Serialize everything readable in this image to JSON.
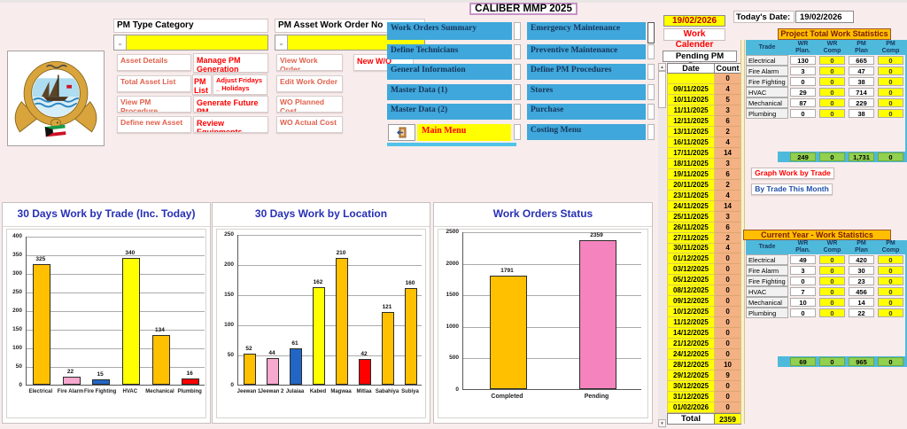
{
  "title": "CALIBER MMP 2025",
  "today": {
    "label": "Today's Date:",
    "value": "19/02/2026"
  },
  "icons": {
    "dropdown_arrow": "⌄",
    "scroll_up": "▲",
    "scroll_down": "▼"
  },
  "pm_category": {
    "label": "PM Type Category",
    "combo_value": "",
    "asset_details": "Asset Details",
    "manage_pm": "Manage PM Generation",
    "total_asset_list": "Total Asset List",
    "pm_list": "PM List",
    "adjust_fridays": "Adjust Fridays _ Holidays",
    "view_pm_procedure": "View PM Procedure",
    "generate_future_pm": "Generate Future PM",
    "define_new_asset": "Define new Asset",
    "review_equipments": "Review Equipments"
  },
  "pm_workorder": {
    "label": "PM Asset Work Order No",
    "combo_value": "",
    "view_work_order": "View Work Order",
    "new_wo": "New W/O",
    "edit_work_order": "Edit Work Order",
    "wo_planned_cost": "WO Planned Cost",
    "wo_actual_cost": "WO Actual Cost"
  },
  "menu": {
    "left": [
      "Work Orders Summary",
      "Define Technicians",
      "General Information",
      "Master Data  (1)",
      "Master Data  (2)"
    ],
    "right": [
      "Emergency Maintenance",
      "Preventive Maintenance",
      "Define PM Procedures",
      "Stores",
      "Purchase",
      "Costing Menu"
    ],
    "main_menu": "Main Menu"
  },
  "calendar": {
    "current_date": "19/02/2026",
    "work_calender": "Work Calender",
    "pending_title": "Pending PM Dates",
    "date_header": "Date",
    "count_header": "Count",
    "total_label": "Total",
    "total_value": "2359",
    "rows": [
      [
        "",
        "0"
      ],
      [
        "09/11/2025",
        "4"
      ],
      [
        "10/11/2025",
        "5"
      ],
      [
        "11/11/2025",
        "3"
      ],
      [
        "12/11/2025",
        "6"
      ],
      [
        "13/11/2025",
        "2"
      ],
      [
        "16/11/2025",
        "4"
      ],
      [
        "17/11/2025",
        "14"
      ],
      [
        "18/11/2025",
        "3"
      ],
      [
        "19/11/2025",
        "6"
      ],
      [
        "20/11/2025",
        "2"
      ],
      [
        "23/11/2025",
        "4"
      ],
      [
        "24/11/2025",
        "14"
      ],
      [
        "25/11/2025",
        "3"
      ],
      [
        "26/11/2025",
        "6"
      ],
      [
        "27/11/2025",
        "2"
      ],
      [
        "30/11/2025",
        "4"
      ],
      [
        "01/12/2025",
        "0"
      ],
      [
        "03/12/2025",
        "0"
      ],
      [
        "05/12/2025",
        "0"
      ],
      [
        "08/12/2025",
        "0"
      ],
      [
        "09/12/2025",
        "0"
      ],
      [
        "10/12/2025",
        "0"
      ],
      [
        "11/12/2025",
        "0"
      ],
      [
        "14/12/2025",
        "0"
      ],
      [
        "21/12/2025",
        "0"
      ],
      [
        "24/12/2025",
        "0"
      ],
      [
        "28/12/2025",
        "10"
      ],
      [
        "29/12/2025",
        "9"
      ],
      [
        "30/12/2025",
        "0"
      ],
      [
        "31/12/2025",
        "0"
      ],
      [
        "01/02/2026",
        "0"
      ]
    ]
  },
  "stats_project": {
    "title": "Project Total Work Statistics",
    "headers": [
      "Trade",
      "WR Plan.",
      "WR Comp",
      "PM Plan",
      "PM Comp"
    ],
    "rows": [
      [
        "Electrical",
        "130",
        "0",
        "665",
        "0"
      ],
      [
        "Fire Alarm",
        "3",
        "0",
        "47",
        "0"
      ],
      [
        "Fire Fighting",
        "0",
        "0",
        "38",
        "0"
      ],
      [
        "HVAC",
        "29",
        "0",
        "714",
        "0"
      ],
      [
        "Mechanical",
        "87",
        "0",
        "229",
        "0"
      ],
      [
        "Plumbing",
        "0",
        "0",
        "38",
        "0"
      ]
    ],
    "totals": [
      "249",
      "0",
      "1,731",
      "0"
    ],
    "graph_button": "Graph Work by Trade",
    "month_button": "By Trade This Month"
  },
  "stats_year": {
    "title": "Current Year - Work Statistics",
    "headers": [
      "Trade",
      "WR Plan.",
      "WR Comp",
      "PM Plan",
      "PM Comp"
    ],
    "rows": [
      [
        "Electrical",
        "49",
        "0",
        "420",
        "0"
      ],
      [
        "Fire Alarm",
        "3",
        "0",
        "30",
        "0"
      ],
      [
        "Fire Fighting",
        "0",
        "0",
        "23",
        "0"
      ],
      [
        "HVAC",
        "7",
        "0",
        "456",
        "0"
      ],
      [
        "Mechanical",
        "10",
        "0",
        "14",
        "0"
      ],
      [
        "Plumbing",
        "0",
        "0",
        "22",
        "0"
      ]
    ],
    "totals": [
      "69",
      "0",
      "965",
      "0"
    ]
  },
  "chart_data": [
    {
      "type": "bar",
      "title": "30 Days Work by Trade (Inc. Today)",
      "categories": [
        "Electrical",
        "Fire Alarm",
        "Fire Fighting",
        "HVAC",
        "Mechanical",
        "Plumbing"
      ],
      "values": [
        325,
        22,
        15,
        340,
        134,
        16
      ],
      "bar_colors": [
        "#FFC000",
        "#F7A8CE",
        "#2166C4",
        "#FFFF00",
        "#FFC000",
        "#FF0000"
      ],
      "xlabel": "",
      "ylabel": "",
      "ylim": [
        0,
        400
      ],
      "ytick_step": 50,
      "grid": true,
      "legend": false
    },
    {
      "type": "bar",
      "title": "30 Days Work by Location",
      "categories": [
        "Jeewan 1",
        "Jeewan 2",
        "Julaiaa",
        "Kabed",
        "Magwaa",
        "Mitlaa",
        "Sabahiya",
        "Subiya"
      ],
      "values": [
        52,
        44,
        61,
        162,
        210,
        42,
        121,
        160
      ],
      "bar_colors": [
        "#FFC000",
        "#F7A8CE",
        "#2166C4",
        "#FFFF00",
        "#FFC000",
        "#FF0000",
        "#FFC000",
        "#FFC000"
      ],
      "xlabel": "",
      "ylabel": "",
      "ylim": [
        0,
        250
      ],
      "ytick_step": 50,
      "grid": true,
      "legend": false
    },
    {
      "type": "bar",
      "title": "Work Orders Status",
      "categories": [
        "Completed",
        "Pending"
      ],
      "values": [
        1791,
        2359
      ],
      "bar_colors": [
        "#FFC000",
        "#F584BE"
      ],
      "xlabel": "",
      "ylabel": "",
      "ylim": [
        0,
        2500
      ],
      "ytick_step": 500,
      "grid": true,
      "legend": false
    }
  ],
  "colors": {
    "background": "#F8EDEC",
    "menu_blue": "#3FA7DB",
    "menu_text": "#16365C",
    "cyan_table": "#4FB9DC",
    "amber_title": "#FFBF00",
    "yellow_cell": "#FFFF00",
    "count_cell": "#F4B183",
    "green_total": "#92D050",
    "red_text": "#FF0000",
    "chart_title_blue": "#2730B4"
  }
}
